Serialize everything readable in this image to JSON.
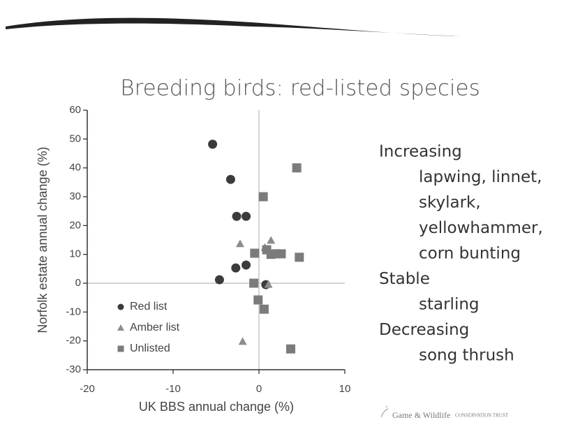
{
  "chart_data": {
    "type": "scatter",
    "title": "Breeding birds: red-listed species",
    "xlabel": "UK BBS annual change (%)",
    "ylabel": "Norfolk estate annual change (%)",
    "xlim": [
      -20,
      10
    ],
    "ylim": [
      -30,
      60
    ],
    "xticks": [
      -20,
      -10,
      0,
      10
    ],
    "yticks": [
      -30,
      -20,
      -10,
      0,
      10,
      20,
      30,
      40,
      50,
      60
    ],
    "zero_lines": true,
    "legend": "lower left",
    "series": [
      {
        "name": "Red list",
        "color": "#3b3b3b",
        "marker": "circle",
        "x": [
          -5.4,
          -3.3,
          -2.6,
          -1.5,
          -2.7,
          -1.5,
          -4.6,
          0.8
        ],
        "values": [
          48.2,
          36,
          23.2,
          23.2,
          5.3,
          6.3,
          1.2,
          -0.5
        ]
      },
      {
        "name": "Amber list",
        "color": "#8c8c8c",
        "marker": "triangle",
        "x": [
          -2.2,
          1.4,
          0.7,
          -1.9,
          1.1
        ],
        "values": [
          13.6,
          14.8,
          12.3,
          -20.3,
          -0.5
        ]
      },
      {
        "name": "Unlisted",
        "color": "#7b7b7b",
        "marker": "square",
        "x": [
          4.4,
          0.5,
          4.7,
          -0.5,
          0.9,
          1.4,
          2.0,
          2.6,
          -0.6,
          -0.1,
          0.6,
          3.7
        ],
        "values": [
          40,
          30,
          9,
          10.4,
          11.6,
          10,
          10.2,
          10.2,
          0,
          -5.8,
          -9,
          -22.8
        ]
      }
    ]
  },
  "side_text": [
    {
      "heading": "Increasing",
      "items": [
        "lapwing, linnet,",
        "skylark,",
        "yellowhammer,",
        "corn bunting"
      ]
    },
    {
      "heading": "Stable",
      "items": [
        "starling"
      ]
    },
    {
      "heading": "Decreasing",
      "items": [
        "song thrush"
      ]
    }
  ],
  "footer": {
    "name": "Game & Wildlife",
    "tag": "CONSERVATION TRUST"
  }
}
